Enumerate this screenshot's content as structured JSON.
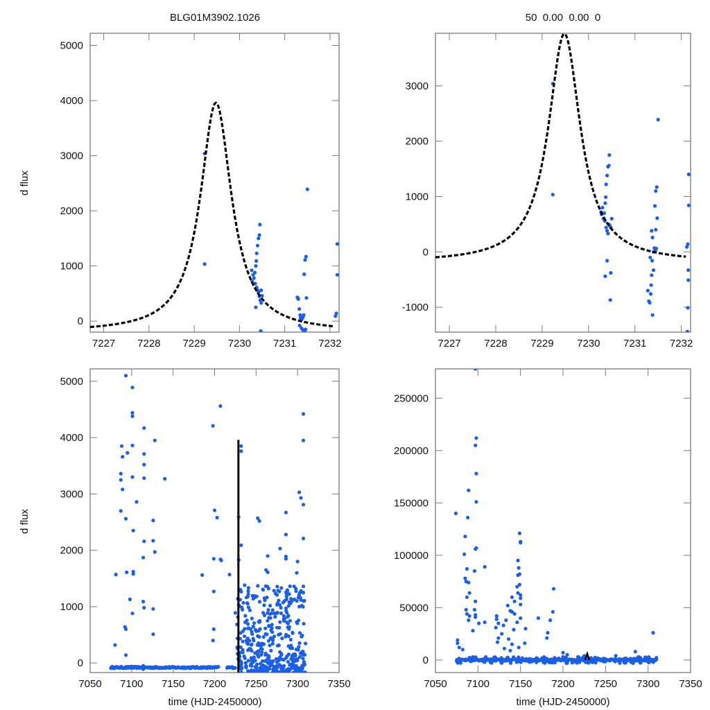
{
  "colors": {
    "points": "#1a5fe6",
    "model": "#000000",
    "frame": "#7a7a7a"
  },
  "chart_data": [
    {
      "id": "top-left",
      "type": "scatter",
      "title": "BLG01M3902.1026",
      "xlabel": "",
      "ylabel": "d flux",
      "xlim": [
        7226.7,
        7232.2
      ],
      "ylim": [
        -200,
        5220
      ],
      "xticks": [
        7227,
        7228,
        7229,
        7230,
        7231,
        7232
      ],
      "xtick_labels": [
        "7227",
        "7228",
        "7229",
        "7230",
        "7231",
        "7232"
      ],
      "yticks": [
        0,
        1000,
        2000,
        3000,
        4000,
        5000
      ],
      "ytick_labels": [
        "0",
        "1000",
        "2000",
        "3000",
        "4000",
        "5000"
      ],
      "grid": false,
      "model": {
        "style": "dashed",
        "t0": 7229.48,
        "peak": 3960,
        "base": -200,
        "width": 0.42
      },
      "points": [
        [
          7229.23,
          3040
        ],
        [
          7229.23,
          1035
        ],
        [
          7230.27,
          920
        ],
        [
          7230.28,
          720
        ],
        [
          7230.3,
          840
        ],
        [
          7230.32,
          780
        ],
        [
          7230.34,
          880
        ],
        [
          7230.36,
          1000
        ],
        [
          7230.38,
          1230
        ],
        [
          7230.4,
          1370
        ],
        [
          7230.42,
          1500
        ],
        [
          7230.44,
          1560
        ],
        [
          7230.45,
          1750
        ],
        [
          7230.37,
          1090
        ],
        [
          7230.35,
          680
        ],
        [
          7230.38,
          610
        ],
        [
          7230.4,
          560
        ],
        [
          7230.42,
          520
        ],
        [
          7230.44,
          450
        ],
        [
          7230.46,
          380
        ],
        [
          7230.48,
          330
        ],
        [
          7230.5,
          460
        ],
        [
          7230.36,
          250
        ],
        [
          7230.48,
          560
        ],
        [
          7230.47,
          -180
        ],
        [
          7231.28,
          430
        ],
        [
          7231.3,
          400
        ],
        [
          7231.32,
          220
        ],
        [
          7231.34,
          110
        ],
        [
          7231.35,
          60
        ],
        [
          7231.36,
          20
        ],
        [
          7231.38,
          40
        ],
        [
          7231.4,
          70
        ],
        [
          7231.42,
          110
        ],
        [
          7231.43,
          850
        ],
        [
          7231.45,
          1110
        ],
        [
          7231.47,
          1170
        ],
        [
          7231.48,
          420
        ],
        [
          7231.5,
          2390
        ],
        [
          7231.33,
          -80
        ],
        [
          7231.37,
          -130
        ],
        [
          7231.4,
          -160
        ],
        [
          7231.44,
          -180
        ],
        [
          7231.46,
          -150
        ],
        [
          7232.16,
          1400
        ],
        [
          7232.16,
          840
        ],
        [
          7232.14,
          140
        ],
        [
          7232.12,
          90
        ]
      ]
    },
    {
      "id": "top-right",
      "type": "scatter",
      "title": "50  0.00  0.00  0",
      "xlabel": "",
      "ylabel": "",
      "xlim": [
        7226.7,
        7232.2
      ],
      "ylim": [
        -1450,
        3950
      ],
      "xticks": [
        7227,
        7228,
        7229,
        7230,
        7231,
        7232
      ],
      "xtick_labels": [
        "7227",
        "7228",
        "7229",
        "7230",
        "7231",
        "7232"
      ],
      "yticks": [
        -1000,
        0,
        1000,
        2000,
        3000
      ],
      "ytick_labels": [
        "-1000",
        "0",
        "1000",
        "2000",
        "3000"
      ],
      "grid": false,
      "model": {
        "style": "dashed",
        "t0": 7229.48,
        "peak": 3940,
        "base": -190,
        "width": 0.42
      },
      "points": [
        [
          7229.23,
          3040
        ],
        [
          7229.23,
          1035
        ],
        [
          7230.27,
          720
        ],
        [
          7230.28,
          680
        ],
        [
          7230.3,
          800
        ],
        [
          7230.32,
          600
        ],
        [
          7230.34,
          700
        ],
        [
          7230.36,
          880
        ],
        [
          7230.38,
          1220
        ],
        [
          7230.4,
          1380
        ],
        [
          7230.42,
          1540
        ],
        [
          7230.44,
          1560
        ],
        [
          7230.45,
          1750
        ],
        [
          7230.37,
          990
        ],
        [
          7230.35,
          560
        ],
        [
          7230.38,
          440
        ],
        [
          7230.4,
          380
        ],
        [
          7230.42,
          330
        ],
        [
          7230.44,
          500
        ],
        [
          7230.46,
          470
        ],
        [
          7230.48,
          440
        ],
        [
          7230.5,
          600
        ],
        [
          7230.36,
          -440
        ],
        [
          7230.48,
          -380
        ],
        [
          7230.47,
          -870
        ],
        [
          7230.4,
          -160
        ],
        [
          7231.28,
          -700
        ],
        [
          7231.3,
          -890
        ],
        [
          7231.32,
          -920
        ],
        [
          7231.34,
          -760
        ],
        [
          7231.35,
          -600
        ],
        [
          7231.36,
          -420
        ],
        [
          7231.38,
          -1140
        ],
        [
          7231.4,
          -330
        ],
        [
          7231.42,
          70
        ],
        [
          7231.43,
          830
        ],
        [
          7231.45,
          1100
        ],
        [
          7231.47,
          1170
        ],
        [
          7231.48,
          610
        ],
        [
          7231.5,
          2390
        ],
        [
          7231.33,
          -100
        ],
        [
          7231.37,
          -160
        ],
        [
          7231.4,
          0
        ],
        [
          7231.44,
          20
        ],
        [
          7231.46,
          60
        ],
        [
          7231.38,
          260
        ],
        [
          7231.45,
          400
        ],
        [
          7231.36,
          380
        ],
        [
          7232.16,
          1400
        ],
        [
          7232.16,
          840
        ],
        [
          7232.14,
          140
        ],
        [
          7232.12,
          90
        ],
        [
          7232.15,
          -330
        ],
        [
          7232.15,
          -510
        ],
        [
          7232.14,
          -1010
        ],
        [
          7232.13,
          -1440
        ]
      ]
    },
    {
      "id": "bottom-left",
      "type": "scatter",
      "title": "",
      "xlabel": "time (HJD-2450000)",
      "ylabel": "d flux",
      "xlim": [
        7050,
        7350
      ],
      "ylim": [
        -170,
        5220
      ],
      "xticks": [
        7050,
        7100,
        7150,
        7200,
        7250,
        7300,
        7350
      ],
      "xtick_labels": [
        "7050",
        "7100",
        "7150",
        "7200",
        "7250",
        "7300",
        "7350"
      ],
      "yticks": [
        0,
        1000,
        2000,
        3000,
        4000,
        5000
      ],
      "ytick_labels": [
        "0",
        "1000",
        "2000",
        "3000",
        "4000",
        "5000"
      ],
      "grid": false,
      "model": {
        "style": "dashed",
        "t0": 7229.48,
        "peak": 3960,
        "base": -200,
        "width": 0.42
      },
      "points": [
        [
          7093,
          5100
        ],
        [
          7101,
          4890
        ],
        [
          7101,
          4440
        ],
        [
          7101,
          4380
        ],
        [
          7115,
          4170
        ],
        [
          7101,
          3860
        ],
        [
          7088,
          3850
        ],
        [
          7128,
          3950
        ],
        [
          7095,
          3730
        ],
        [
          7089,
          3660
        ],
        [
          7115,
          3710
        ],
        [
          7115,
          3520
        ],
        [
          7087,
          3360
        ],
        [
          7087,
          3250
        ],
        [
          7101,
          3300
        ],
        [
          7115,
          3280
        ],
        [
          7140,
          3270
        ],
        [
          7089,
          3080
        ],
        [
          7106,
          2860
        ],
        [
          7087,
          2700
        ],
        [
          7093,
          2560
        ],
        [
          7102,
          2350
        ],
        [
          7126,
          2530
        ],
        [
          7115,
          2160
        ],
        [
          7126,
          2170
        ],
        [
          7128,
          1970
        ],
        [
          7114,
          1870
        ],
        [
          7081,
          1570
        ],
        [
          7094,
          1610
        ],
        [
          7102,
          1620
        ],
        [
          7102,
          1580
        ],
        [
          7098,
          1130
        ],
        [
          7114,
          1090
        ],
        [
          7101,
          880
        ],
        [
          7115,
          980
        ],
        [
          7126,
          960
        ],
        [
          7092,
          640
        ],
        [
          7093,
          600
        ],
        [
          7126,
          510
        ],
        [
          7080,
          320
        ],
        [
          7093,
          140
        ],
        [
          7092,
          -80
        ],
        [
          7100,
          -60
        ],
        [
          7103,
          -70
        ],
        [
          7114,
          -50
        ],
        [
          7114,
          -110
        ],
        [
          7198,
          4210
        ],
        [
          7207,
          4560
        ],
        [
          7200,
          2710
        ],
        [
          7203,
          2580
        ],
        [
          7199,
          1850
        ],
        [
          7208,
          1820
        ],
        [
          7207,
          1840
        ],
        [
          7199,
          1270
        ],
        [
          7185,
          1560
        ],
        [
          7199,
          600
        ],
        [
          7198,
          400
        ],
        [
          7218,
          1570
        ],
        [
          7225,
          890
        ],
        [
          7232,
          3850
        ],
        [
          7232,
          3760
        ],
        [
          7229,
          2590
        ],
        [
          7232,
          2090
        ],
        [
          7229,
          1830
        ],
        [
          7252,
          2570
        ],
        [
          7254,
          2520
        ],
        [
          7264,
          1900
        ],
        [
          7279,
          2030
        ],
        [
          7262,
          1650
        ],
        [
          7264,
          1610
        ],
        [
          7286,
          2670
        ],
        [
          7286,
          2280
        ],
        [
          7286,
          1890
        ],
        [
          7286,
          1850
        ],
        [
          7302,
          3030
        ],
        [
          7304,
          2930
        ],
        [
          7300,
          1800
        ],
        [
          7299,
          1600
        ],
        [
          7307,
          4420
        ],
        [
          7307,
          3950
        ],
        [
          7307,
          2810
        ],
        [
          7307,
          2210
        ],
        [
          7307,
          1360
        ],
        [
          7307,
          1250
        ],
        [
          7307,
          1100
        ],
        [
          7304,
          1120
        ],
        [
          7301,
          1160
        ],
        [
          7302,
          1000
        ],
        [
          7278,
          1270
        ],
        [
          7276,
          1060
        ],
        [
          7292,
          1140
        ],
        [
          7288,
          820
        ],
        [
          7260,
          1150
        ],
        [
          7270,
          940
        ]
      ],
      "baseline_band": {
        "x_ranges": [
          [
            7075,
            7205
          ],
          [
            7215,
            7225
          ]
        ],
        "y": -80
      },
      "dense_region": {
        "x_range": [
          7227,
          7310
        ],
        "y_range": [
          -170,
          1400
        ]
      }
    },
    {
      "id": "bottom-right",
      "type": "scatter",
      "title": "",
      "xlabel": "time (HJD-2450000)",
      "ylabel": "",
      "xlim": [
        7050,
        7350
      ],
      "ylim": [
        -12000,
        278000
      ],
      "xticks": [
        7050,
        7100,
        7150,
        7200,
        7250,
        7300,
        7350
      ],
      "xtick_labels": [
        "7050",
        "7100",
        "7150",
        "7200",
        "7250",
        "7300",
        "7350"
      ],
      "yticks": [
        0,
        50000,
        100000,
        150000,
        200000,
        250000
      ],
      "ytick_labels": [
        "0",
        "50000",
        "100000",
        "150000",
        "200000",
        "250000"
      ],
      "grid": false,
      "model": {
        "style": "dashed",
        "t0": 7229.48,
        "peak": 3960,
        "base": -200,
        "width": 0.42
      },
      "points": [
        [
          7097,
          278000
        ],
        [
          7098,
          212000
        ],
        [
          7097,
          205000
        ],
        [
          7098,
          178000
        ],
        [
          7089,
          162000
        ],
        [
          7098,
          151000
        ],
        [
          7074,
          140000
        ],
        [
          7088,
          136000
        ],
        [
          7085,
          118000
        ],
        [
          7097,
          106000
        ],
        [
          7098,
          107000
        ],
        [
          7084,
          101000
        ],
        [
          7108,
          89000
        ],
        [
          7096,
          85000
        ],
        [
          7087,
          87000
        ],
        [
          7085,
          78000
        ],
        [
          7086,
          75000
        ],
        [
          7089,
          74000
        ],
        [
          7090,
          64000
        ],
        [
          7087,
          60000
        ],
        [
          7097,
          56000
        ],
        [
          7096,
          48000
        ],
        [
          7086,
          48000
        ],
        [
          7087,
          44000
        ],
        [
          7090,
          42000
        ],
        [
          7097,
          43000
        ],
        [
          7097,
          41000
        ],
        [
          7089,
          38000
        ],
        [
          7108,
          36000
        ],
        [
          7101,
          35000
        ],
        [
          7094,
          28000
        ],
        [
          7076,
          19000
        ],
        [
          7076,
          16000
        ],
        [
          7078,
          12000
        ],
        [
          7082,
          10000
        ],
        [
          7149,
          121000
        ],
        [
          7150,
          113000
        ],
        [
          7150,
          112000
        ],
        [
          7147,
          95000
        ],
        [
          7148,
          88000
        ],
        [
          7149,
          82000
        ],
        [
          7147,
          81000
        ],
        [
          7149,
          72000
        ],
        [
          7146,
          70000
        ],
        [
          7147,
          64000
        ],
        [
          7150,
          62000
        ],
        [
          7150,
          59000
        ],
        [
          7150,
          53000
        ],
        [
          7135,
          52000
        ],
        [
          7140,
          60000
        ],
        [
          7143,
          56000
        ],
        [
          7140,
          46000
        ],
        [
          7138,
          47000
        ],
        [
          7143,
          44000
        ],
        [
          7133,
          38000
        ],
        [
          7150,
          40000
        ],
        [
          7146,
          36000
        ],
        [
          7130,
          33000
        ],
        [
          7142,
          29000
        ],
        [
          7122,
          42000
        ],
        [
          7122,
          39000
        ],
        [
          7124,
          35000
        ],
        [
          7121,
          31000
        ],
        [
          7124,
          21000
        ],
        [
          7123,
          17000
        ],
        [
          7128,
          25000
        ],
        [
          7136,
          20000
        ],
        [
          7140,
          15000
        ],
        [
          7148,
          12000
        ],
        [
          7131,
          11000
        ],
        [
          7138,
          9000
        ],
        [
          7156,
          30000
        ],
        [
          7155,
          16000
        ],
        [
          7171,
          40000
        ],
        [
          7189,
          68000
        ],
        [
          7188,
          46000
        ],
        [
          7185,
          38000
        ],
        [
          7182,
          26000
        ],
        [
          7181,
          21000
        ],
        [
          7200,
          3000
        ],
        [
          7200,
          7000
        ],
        [
          7205,
          5000
        ],
        [
          7204,
          -3000
        ],
        [
          7225,
          4000
        ],
        [
          7233,
          2000
        ],
        [
          7238,
          1000
        ],
        [
          7262,
          4000
        ],
        [
          7285,
          8000
        ],
        [
          7306,
          26000
        ]
      ],
      "baseline_band": {
        "x_ranges": [
          [
            7075,
            7310
          ]
        ],
        "y": 0
      }
    }
  ]
}
